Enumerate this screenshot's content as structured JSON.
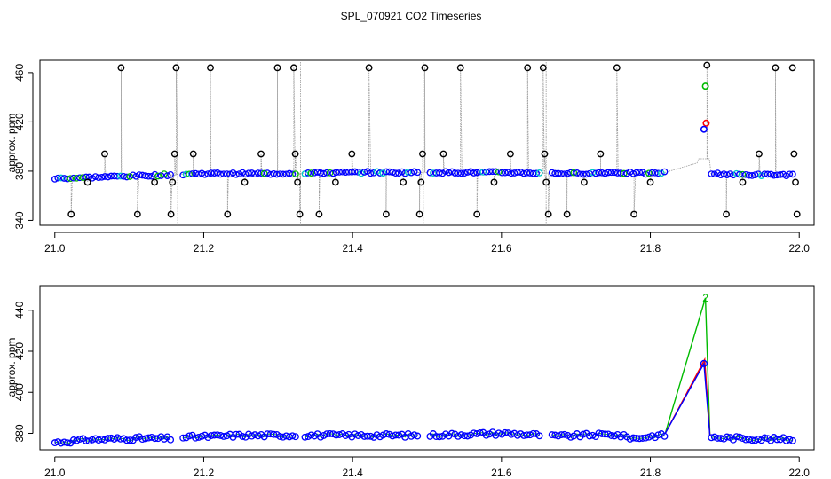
{
  "title": "SPL_070921  CO2 Timeseries",
  "colors": {
    "raw_points": "#000000",
    "blue": "#0000ff",
    "red": "#ff0000",
    "green": "#00bb00",
    "cyan": "#00c8c8",
    "line_gray": "#9a9a9a"
  },
  "chart_data": [
    {
      "type": "scatter",
      "panel": "top",
      "ylabel": "approx. ppm",
      "xlim": [
        20.98,
        22.02
      ],
      "ylim": [
        336,
        470
      ],
      "x_ticks": [
        "21.0",
        "21.2",
        "21.4",
        "21.6",
        "21.8",
        "22.0"
      ],
      "y_ticks": [
        "340",
        "380",
        "420",
        "460"
      ],
      "baseline": [
        {
          "x": 21.0,
          "y": 374
        },
        {
          "x": 21.1,
          "y": 376
        },
        {
          "x": 21.2,
          "y": 378
        },
        {
          "x": 21.3,
          "y": 378
        },
        {
          "x": 21.4,
          "y": 379
        },
        {
          "x": 21.5,
          "y": 379
        },
        {
          "x": 21.6,
          "y": 379
        },
        {
          "x": 21.7,
          "y": 378
        },
        {
          "x": 21.75,
          "y": 379
        },
        {
          "x": 21.8,
          "y": 378
        },
        {
          "x": 21.82,
          "y": 379
        }
      ],
      "baseline_2": [
        {
          "x": 21.88,
          "y": 378
        },
        {
          "x": 21.93,
          "y": 377
        },
        {
          "x": 21.99,
          "y": 377
        }
      ],
      "gaps": [
        21.165,
        21.33,
        21.495,
        21.66
      ],
      "outliers": [
        {
          "x": 21.022,
          "y": 345
        },
        {
          "x": 21.044,
          "y": 371
        },
        {
          "x": 21.067,
          "y": 394
        },
        {
          "x": 21.089,
          "y": 464
        },
        {
          "x": 21.111,
          "y": 345
        },
        {
          "x": 21.134,
          "y": 371
        },
        {
          "x": 21.156,
          "y": 345
        },
        {
          "x": 21.158,
          "y": 371
        },
        {
          "x": 21.161,
          "y": 394
        },
        {
          "x": 21.163,
          "y": 464
        },
        {
          "x": 21.186,
          "y": 394
        },
        {
          "x": 21.209,
          "y": 464
        },
        {
          "x": 21.232,
          "y": 345
        },
        {
          "x": 21.255,
          "y": 371
        },
        {
          "x": 21.277,
          "y": 394
        },
        {
          "x": 21.299,
          "y": 464
        },
        {
          "x": 21.321,
          "y": 464
        },
        {
          "x": 21.323,
          "y": 394
        },
        {
          "x": 21.326,
          "y": 371
        },
        {
          "x": 21.329,
          "y": 345
        },
        {
          "x": 21.355,
          "y": 345
        },
        {
          "x": 21.377,
          "y": 371
        },
        {
          "x": 21.399,
          "y": 394
        },
        {
          "x": 21.422,
          "y": 464
        },
        {
          "x": 21.445,
          "y": 345
        },
        {
          "x": 21.468,
          "y": 371
        },
        {
          "x": 21.49,
          "y": 345
        },
        {
          "x": 21.492,
          "y": 371
        },
        {
          "x": 21.494,
          "y": 394
        },
        {
          "x": 21.497,
          "y": 464
        },
        {
          "x": 21.522,
          "y": 394
        },
        {
          "x": 21.545,
          "y": 464
        },
        {
          "x": 21.567,
          "y": 345
        },
        {
          "x": 21.59,
          "y": 371
        },
        {
          "x": 21.612,
          "y": 394
        },
        {
          "x": 21.635,
          "y": 464
        },
        {
          "x": 21.656,
          "y": 464
        },
        {
          "x": 21.658,
          "y": 394
        },
        {
          "x": 21.66,
          "y": 371
        },
        {
          "x": 21.663,
          "y": 345
        },
        {
          "x": 21.688,
          "y": 345
        },
        {
          "x": 21.711,
          "y": 371
        },
        {
          "x": 21.733,
          "y": 394
        },
        {
          "x": 21.755,
          "y": 464
        },
        {
          "x": 21.778,
          "y": 345
        },
        {
          "x": 21.8,
          "y": 371
        },
        {
          "x": 21.876,
          "y": 466
        },
        {
          "x": 21.902,
          "y": 345
        },
        {
          "x": 21.924,
          "y": 371
        },
        {
          "x": 21.946,
          "y": 394
        },
        {
          "x": 21.968,
          "y": 464
        },
        {
          "x": 21.991,
          "y": 464
        },
        {
          "x": 21.993,
          "y": 394
        },
        {
          "x": 21.995,
          "y": 371
        },
        {
          "x": 21.997,
          "y": 345
        }
      ],
      "highlight_points": [
        {
          "x": 21.874,
          "y": 449,
          "color": "green"
        },
        {
          "x": 21.875,
          "y": 419,
          "color": "red"
        },
        {
          "x": 21.872,
          "y": 414,
          "color": "blue"
        }
      ]
    },
    {
      "type": "line",
      "panel": "bottom",
      "ylabel": "approx. ppm",
      "xlim": [
        20.98,
        22.02
      ],
      "ylim": [
        372,
        452
      ],
      "x_ticks": [
        "21.0",
        "21.2",
        "21.4",
        "21.6",
        "21.8",
        "22.0"
      ],
      "y_ticks": [
        "380",
        "400",
        "420",
        "440"
      ],
      "baseline": [
        {
          "x": 21.0,
          "y": 375.5
        },
        {
          "x": 21.05,
          "y": 377
        },
        {
          "x": 21.1,
          "y": 377.5
        },
        {
          "x": 21.16,
          "y": 377.5
        },
        {
          "x": 21.17,
          "y": 378
        },
        {
          "x": 21.25,
          "y": 379
        },
        {
          "x": 21.33,
          "y": 379
        },
        {
          "x": 21.34,
          "y": 379
        },
        {
          "x": 21.49,
          "y": 379
        },
        {
          "x": 21.5,
          "y": 379
        },
        {
          "x": 21.6,
          "y": 380
        },
        {
          "x": 21.66,
          "y": 379
        },
        {
          "x": 21.67,
          "y": 378.5
        },
        {
          "x": 21.75,
          "y": 379.5
        },
        {
          "x": 21.78,
          "y": 377.5
        },
        {
          "x": 21.81,
          "y": 379
        },
        {
          "x": 21.82,
          "y": 379
        }
      ],
      "baseline_2": [
        {
          "x": 21.88,
          "y": 378
        },
        {
          "x": 21.93,
          "y": 377.5
        },
        {
          "x": 21.99,
          "y": 377
        }
      ],
      "gaps": [
        21.165,
        21.33,
        21.495,
        21.66
      ],
      "peak": {
        "start": {
          "x": 21.82,
          "y": 380
        },
        "green_top": {
          "x": 21.874,
          "y": 446
        },
        "red_top": {
          "x": 21.873,
          "y": 416
        },
        "blue_top": {
          "x": 21.872,
          "y": 414
        },
        "end": {
          "x": 21.88,
          "y": 379
        }
      },
      "peak_marker_label": "2"
    }
  ]
}
